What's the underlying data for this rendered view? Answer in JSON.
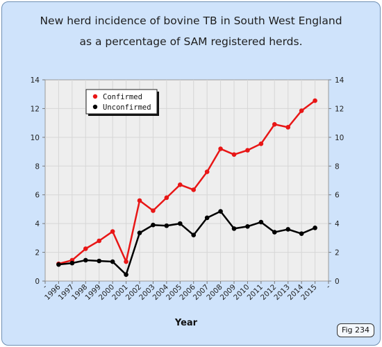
{
  "chart_data": {
    "type": "line",
    "title": "New herd incidence of bovine TB in South West England",
    "subtitle": "as a percentage of SAM registered herds.",
    "xlabel": "Year",
    "ylabel": "",
    "categories": [
      "1996",
      "1997",
      "1998",
      "1999",
      "2000",
      "2001",
      "2002",
      "2003",
      "2004",
      "2005",
      "2006",
      "2007",
      "2008",
      "2009",
      "2010",
      "2011",
      "2012",
      "2013",
      "2014",
      "2015"
    ],
    "x_end_labels": [
      "-",
      "-"
    ],
    "ylim": [
      0,
      14
    ],
    "yticks": [
      0,
      2,
      4,
      6,
      8,
      10,
      12,
      14
    ],
    "y_tick_labels_both_sides": true,
    "grid": true,
    "legend_position": "top-left",
    "series": [
      {
        "name": "Confirmed",
        "color": "#e81616",
        "values": [
          1.2,
          1.45,
          2.25,
          2.8,
          3.45,
          1.35,
          5.6,
          4.9,
          5.8,
          6.7,
          6.35,
          7.6,
          9.2,
          8.8,
          9.1,
          9.55,
          10.9,
          10.7,
          11.85,
          12.55
        ]
      },
      {
        "name": "Unconfirmed",
        "color": "#000000",
        "values": [
          1.15,
          1.25,
          1.45,
          1.4,
          1.35,
          0.45,
          3.35,
          3.9,
          3.85,
          4.0,
          3.2,
          4.4,
          4.85,
          3.65,
          3.8,
          4.1,
          3.4,
          3.6,
          3.3,
          3.7
        ]
      }
    ]
  },
  "badge": {
    "label": "Fig 234"
  }
}
